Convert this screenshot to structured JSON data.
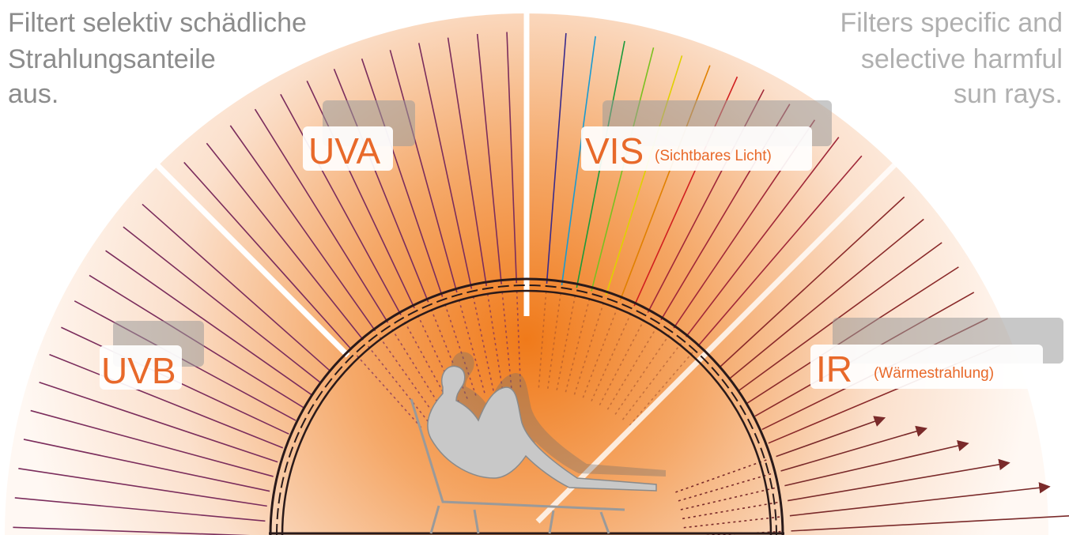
{
  "left_text": {
    "lines": [
      "Filtert selektiv schädliche",
      "Strahlungsanteile",
      "aus."
    ]
  },
  "right_text": {
    "lines": [
      "Filters specific and",
      "selective harmful",
      "sun rays."
    ]
  },
  "labels": {
    "uva": "UVA",
    "vis": "VIS",
    "vis_note": "(Sichtbares Licht)",
    "uvb": "UVB",
    "ir": "IR",
    "ir_note": "(Wärmestrahlung)"
  }
}
